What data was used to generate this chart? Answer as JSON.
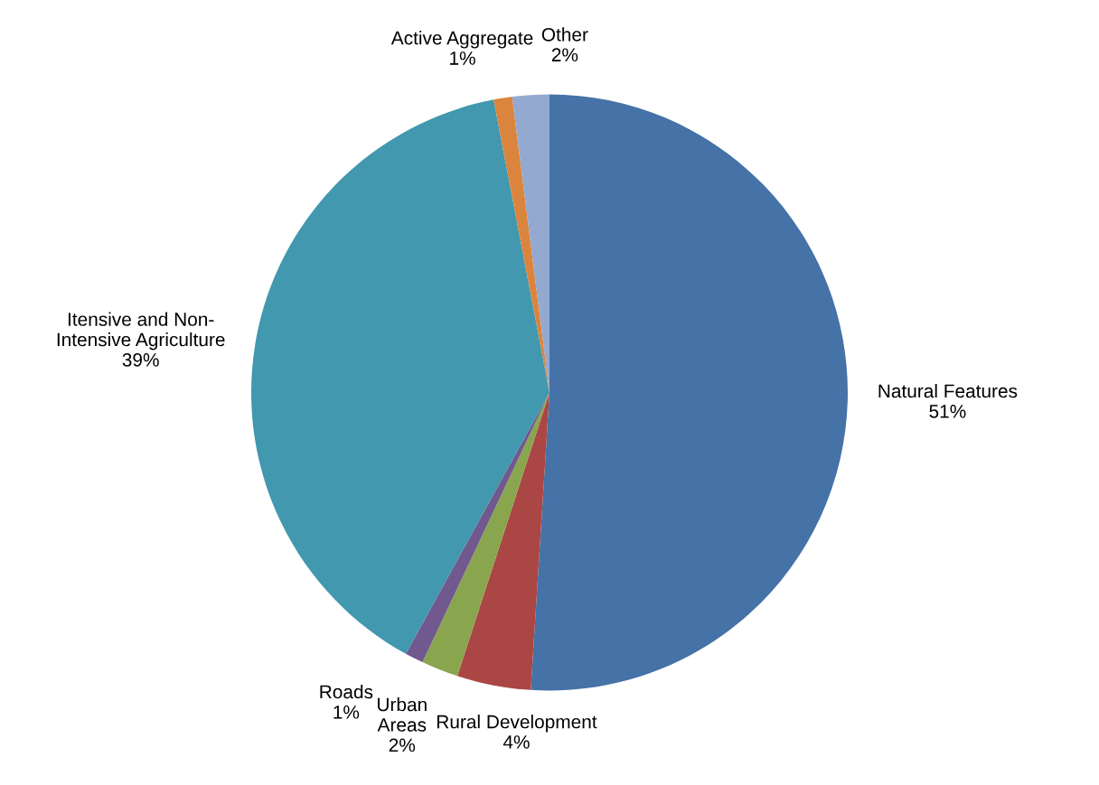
{
  "chart_data": {
    "type": "pie",
    "categories": [
      "Natural Features",
      "Rural Development",
      "Urban\nAreas",
      "Roads",
      "Itensive and Non-\nIntensive Agriculture",
      "Active Aggregate",
      "Other"
    ],
    "values": [
      51,
      4,
      2,
      1,
      39,
      1,
      2
    ],
    "value_labels": [
      "51%",
      "4%",
      "2%",
      "1%",
      "39%",
      "1%",
      "2%"
    ],
    "colors": [
      "#4572a7",
      "#aa4643",
      "#89a54e",
      "#71588f",
      "#4198af",
      "#db843d",
      "#93a9cf"
    ],
    "legend": false
  }
}
